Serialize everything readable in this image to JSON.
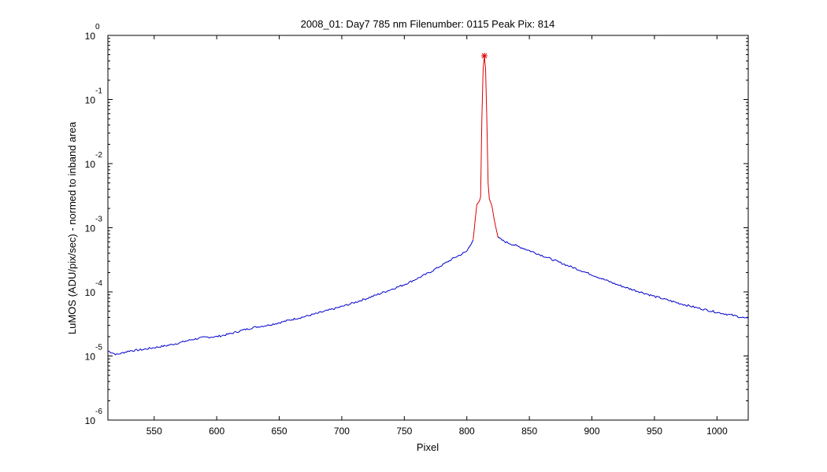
{
  "chart_data": {
    "type": "line",
    "title": "2008_01: Day7  785 nm  Filenumber: 0115 Peak Pix: 814",
    "xlabel": "Pixel",
    "ylabel": "LuMOS (ADU/pix/sec) - normed to inband area",
    "xlim": [
      513,
      1025
    ],
    "ylim": [
      1e-06,
      1
    ],
    "yscale": "log",
    "grid": false,
    "legend": "none",
    "x_ticks": [
      550,
      600,
      650,
      700,
      750,
      800,
      850,
      900,
      950,
      1000
    ],
    "y_ticks": [
      {
        "base": "10",
        "exp": "-6",
        "value": 1e-06
      },
      {
        "base": "10",
        "exp": "-5",
        "value": 1e-05
      },
      {
        "base": "10",
        "exp": "-4",
        "value": 0.0001
      },
      {
        "base": "10",
        "exp": "-3",
        "value": 0.001
      },
      {
        "base": "10",
        "exp": "-2",
        "value": 0.01
      },
      {
        "base": "10",
        "exp": "-1",
        "value": 0.1
      },
      {
        "base": "10",
        "exp": "0",
        "value": 1
      }
    ],
    "peak_marker": {
      "x": 814,
      "y": 0.48
    },
    "series": [
      {
        "color": "#0000cc",
        "x": [
          513,
          520,
          530,
          540,
          550,
          560,
          570,
          580,
          590,
          600,
          610,
          620,
          630,
          640,
          650,
          660,
          670,
          680,
          690,
          700,
          710,
          720,
          730,
          740,
          750,
          760,
          770,
          780,
          790,
          795,
          800,
          805
        ],
        "y": [
          1.2e-05,
          1.05e-05,
          1.2e-05,
          1.25e-05,
          1.35e-05,
          1.45e-05,
          1.6e-05,
          1.8e-05,
          1.95e-05,
          2e-05,
          2.2e-05,
          2.5e-05,
          2.8e-05,
          3e-05,
          3.3e-05,
          3.7e-05,
          4.1e-05,
          4.6e-05,
          5.2e-05,
          5.9e-05,
          6.8e-05,
          7.9e-05,
          9.3e-05,
          0.00011,
          0.00013,
          0.00016,
          0.0002,
          0.00026,
          0.00034,
          0.00038,
          0.00043,
          0.00065
        ]
      },
      {
        "color": "#dd0000",
        "x": [
          805,
          808,
          810,
          811,
          812,
          813,
          814,
          815,
          816,
          817,
          818,
          819,
          820,
          822,
          825
        ],
        "y": [
          0.00065,
          0.0023,
          0.0026,
          0.003,
          0.05,
          0.3,
          0.48,
          0.3,
          0.05,
          0.005,
          0.0028,
          0.0025,
          0.0022,
          0.0013,
          0.0007
        ]
      },
      {
        "color": "#0000cc",
        "x": [
          825,
          830,
          840,
          850,
          860,
          870,
          880,
          890,
          900,
          910,
          920,
          930,
          940,
          950,
          960,
          970,
          980,
          990,
          1000,
          1010,
          1020,
          1025
        ],
        "y": [
          0.0007,
          0.00061,
          0.00052,
          0.00044,
          0.00037,
          0.00031,
          0.00026,
          0.00022,
          0.000185,
          0.000155,
          0.00013,
          0.000112,
          9.8e-05,
          8.5e-05,
          7.5e-05,
          6.6e-05,
          5.9e-05,
          5.3e-05,
          4.8e-05,
          4.4e-05,
          4e-05,
          3.8e-05
        ]
      }
    ]
  }
}
